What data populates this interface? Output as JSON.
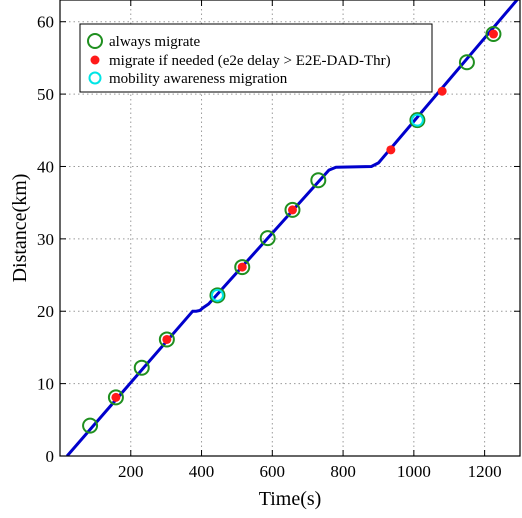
{
  "chart_data": {
    "type": "line",
    "xlabel": "Time(s)",
    "ylabel": "Distance(km)",
    "xlim": [
      0,
      1300
    ],
    "ylim": [
      0,
      63
    ],
    "xticks": [
      200,
      400,
      600,
      800,
      1000,
      1200
    ],
    "yticks": [
      0,
      10,
      20,
      30,
      40,
      50,
      60
    ],
    "grid": true,
    "legend_position": "top-left",
    "line": {
      "color": "#0000cc",
      "x": [
        20,
        375,
        385,
        395,
        405,
        420,
        760,
        780,
        880,
        900,
        1300
      ],
      "y": [
        0,
        20.0,
        20.0,
        20.1,
        20.5,
        21.0,
        39.5,
        39.9,
        40.0,
        40.5,
        63.5
      ]
    },
    "series": [
      {
        "name": "always migrate",
        "marker": "open-circle",
        "color": "#1f8f1f",
        "x": [
          85,
          158,
          231,
          302,
          445,
          515,
          587,
          657,
          730,
          1010,
          1150,
          1225
        ],
        "y": [
          4.2,
          8.1,
          12.2,
          16.1,
          22.2,
          26.1,
          30.1,
          34.0,
          38.1,
          46.4,
          54.4,
          58.3
        ]
      },
      {
        "name": "migrate if needed (e2e delay > E2E-DAD-Thr)",
        "marker": "filled-circle",
        "color": "#ff1a1a",
        "x": [
          158,
          302,
          515,
          657,
          935,
          1080,
          1225
        ],
        "y": [
          8.1,
          16.1,
          26.1,
          34.0,
          42.3,
          50.4,
          58.3
        ]
      },
      {
        "name": "mobility awareness migration",
        "marker": "open-circle",
        "color": "#00e5e5",
        "x": [
          445,
          1010
        ],
        "y": [
          22.2,
          46.4
        ]
      }
    ]
  }
}
